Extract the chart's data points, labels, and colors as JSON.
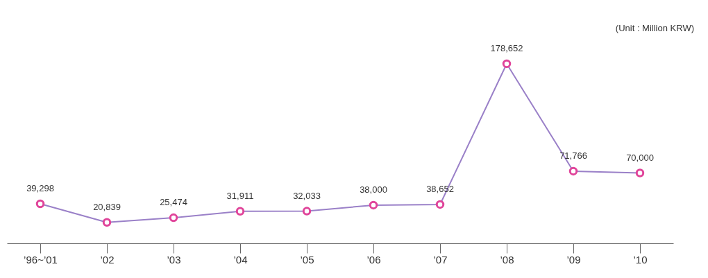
{
  "chart_data": {
    "type": "line",
    "categories": [
      "’96~’01",
      "’02",
      "’03",
      "’04",
      "’05",
      "’06",
      "’07",
      "’08",
      "’09",
      "’10"
    ],
    "series": [
      {
        "color": "#9a80c8",
        "colors": [
          "#e0449a",
          "#e0449a",
          "#e0449a",
          "#e0449a",
          "#e0449a",
          "#e0449a",
          "#e0449a",
          "#e0449a",
          "#e0449a",
          "#e0449a"
        ],
        "values": [
          39298,
          20839,
          25474,
          31911,
          32033,
          38000,
          38652,
          178652,
          71766,
          70000
        ],
        "value_labels": [
          "39,298",
          "20,839",
          "25,474",
          "31,911",
          "32,033",
          "38,000",
          "38,652",
          "178,652",
          "71,766",
          "70,000"
        ]
      }
    ],
    "marker": "circle",
    "tick_labels": "x",
    "annotations": [
      "(Unit : Million KRW)"
    ]
  }
}
